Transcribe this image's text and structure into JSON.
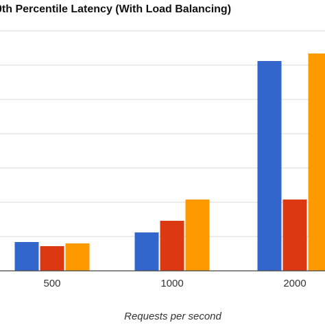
{
  "chart_data": {
    "type": "bar",
    "title": "0th Percentile Latency (With Load Balancing)",
    "xlabel": "Requests per second",
    "ylabel": "",
    "categories": [
      "500",
      "1000",
      "2000"
    ],
    "series": [
      {
        "color": "#3366cc",
        "values": [
          42,
          56,
          306
        ]
      },
      {
        "color": "#dc3912",
        "values": [
          36,
          73,
          104
        ]
      },
      {
        "color": "#ff9900",
        "values": [
          40,
          104,
          317
        ]
      }
    ],
    "ylim": [
      0,
      350
    ],
    "grid": true,
    "legend": "none"
  }
}
